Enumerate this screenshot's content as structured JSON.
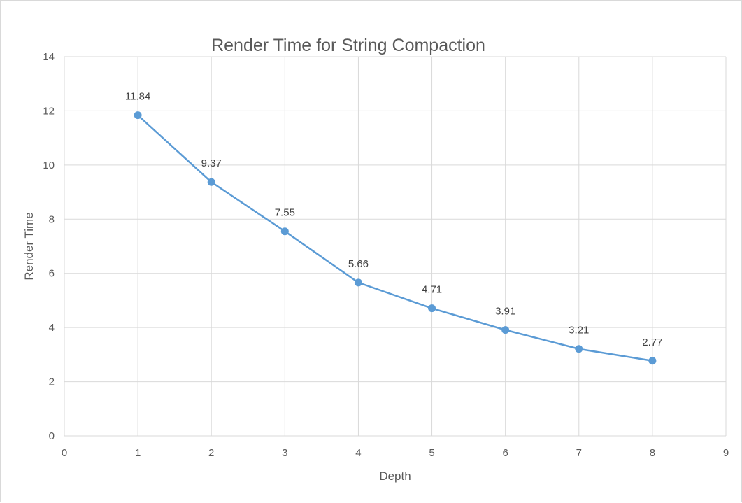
{
  "chart_data": {
    "type": "scatter",
    "title": "Render Time for String Compaction",
    "xlabel": "Depth",
    "ylabel": "Render Time",
    "xlim": [
      0,
      9
    ],
    "ylim": [
      0,
      14
    ],
    "xticks": [
      0,
      1,
      2,
      3,
      4,
      5,
      6,
      7,
      8,
      9
    ],
    "yticks": [
      0,
      2,
      4,
      6,
      8,
      10,
      12,
      14
    ],
    "grid": true,
    "legend": "none",
    "series": [
      {
        "x": [
          1,
          2,
          3,
          4,
          5,
          6,
          7,
          8
        ],
        "y": [
          11.84,
          9.37,
          7.55,
          5.66,
          4.71,
          3.91,
          3.21,
          2.77
        ],
        "labels": [
          "11.84",
          "9.37",
          "7.55",
          "5.66",
          "4.71",
          "3.91",
          "3.21",
          "2.77"
        ],
        "color": "#5b9bd5"
      }
    ]
  }
}
